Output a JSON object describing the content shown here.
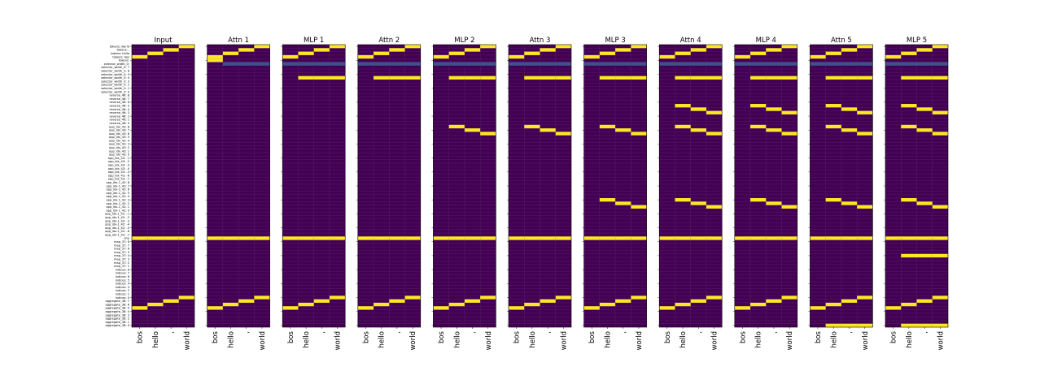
{
  "chart_data": {
    "type": "heatmap",
    "colormap": {
      "low": "#440154",
      "mid": "#3b528b",
      "high": "#fde725"
    },
    "panel_titles": [
      "Input",
      "Attn 1",
      "MLP 1",
      "Attn 2",
      "MLP 2",
      "Attn 3",
      "MLP 3",
      "Attn 4",
      "MLP 4",
      "Attn 5",
      "MLP 5"
    ],
    "x_tick_labels": [
      "bos",
      "hello",
      ",",
      "world"
    ],
    "y_labels": [
      "tokens: world",
      "tokens: ,",
      "tokens: hello",
      "tokens: bos",
      "tokens:",
      "selector_width_0:",
      "selector_width_0: 7",
      "selector_width_0: 6",
      "selector_width_0: 5",
      "selector_width_0: 4",
      "selector_width_0: 3",
      "selector_width_0: 2",
      "selector_width_0: 1",
      "selector_width_0: 0",
      "reverse_46: 8",
      "reverse_46: 7",
      "reverse_46: 6",
      "reverse_46: 5",
      "reverse_46: 4",
      "reverse_46: 3",
      "reverse_46: 2",
      "reverse_46: 1",
      "reverse_46: 0",
      "opp_idx_43: 8",
      "opp_idx_43: 7",
      "opp_idx_43: 6",
      "opp_idx_43: 5",
      "opp_idx_43: 4",
      "opp_idx_43: 3",
      "opp_idx_43: 2",
      "opp_idx_43: 1",
      "opp_idx_43: 0",
      "opp_idx_43: -1",
      "opp_idx_43: -2",
      "opp_idx_43: -3",
      "opp_idx_43: -4",
      "opp_idx_43: -5",
      "opp_idx_43: -6",
      "opp_idx_43: -7",
      "opp_idx-1_42: 8",
      "opp_idx-1_42: 7",
      "opp_idx-1_42: 6",
      "opp_idx-1_42: 5",
      "opp_idx-1_42: 4",
      "opp_idx-1_42: 3",
      "opp_idx-1_42: 2",
      "opp_idx-1_42: 1",
      "opp_idx-1_42: 0",
      "opp_idx-1_42: -1",
      "opp_idx-1_42: -2",
      "opp_idx-1_42: -3",
      "opp_idx-1_42: -4",
      "opp_idx-1_42: -5",
      "opp_idx-1_42: -6",
      "opp_idx-1_42: -7",
      "one",
      "map_37: 8",
      "map_37: 7",
      "map_37: 6",
      "map_37: 5",
      "map_37: 4",
      "map_37: 3",
      "map_37: 2",
      "map_37: 1",
      "indices: 8",
      "indices: 7",
      "indices: 6",
      "indices: 5",
      "indices: 4",
      "indices: 3",
      "indices: 2",
      "indices: 1",
      "indices: 0",
      "aggregate_38: 7",
      "aggregate_38: 6",
      "aggregate_38: 5",
      "aggregate_38: 4",
      "aggregate_38: 3",
      "aggregate_38: 2",
      "aggregate_38: 1",
      "aggregate_38: 0"
    ],
    "cell_values": {
      "note": "value 1 = yellow, 0.4 = blue-grey, 0 = purple; [row, col, value]",
      "base": [
        [
          0,
          3,
          1
        ],
        [
          1,
          2,
          1
        ],
        [
          2,
          1,
          1
        ],
        [
          3,
          0,
          1
        ],
        [
          55,
          0,
          1
        ],
        [
          55,
          1,
          1
        ],
        [
          55,
          2,
          1
        ],
        [
          55,
          3,
          1
        ],
        [
          72,
          3,
          1
        ],
        [
          73,
          2,
          1
        ],
        [
          74,
          1,
          1
        ],
        [
          75,
          0,
          1
        ]
      ],
      "attn1": [
        [
          4,
          0,
          1
        ],
        [
          5,
          1,
          0.4
        ],
        [
          5,
          2,
          0.4
        ],
        [
          5,
          3,
          0.4
        ]
      ],
      "mlp1": [
        [
          5,
          0,
          0.4
        ],
        [
          5,
          1,
          0.4
        ],
        [
          5,
          2,
          0.4
        ],
        [
          5,
          3,
          0.4
        ],
        [
          9,
          1,
          1
        ],
        [
          9,
          2,
          1
        ],
        [
          9,
          3,
          1
        ]
      ],
      "mlp2": [
        [
          23,
          1,
          1
        ],
        [
          24,
          2,
          1
        ],
        [
          25,
          3,
          1
        ]
      ],
      "mlp3": [
        [
          44,
          1,
          1
        ],
        [
          45,
          2,
          1
        ],
        [
          46,
          3,
          1
        ]
      ],
      "attn4": [
        [
          17,
          1,
          1
        ],
        [
          18,
          2,
          1
        ],
        [
          19,
          3,
          1
        ]
      ],
      "attn5": [
        [
          80,
          1,
          1
        ],
        [
          80,
          2,
          1
        ],
        [
          80,
          3,
          1
        ]
      ],
      "mlp5": [
        [
          60,
          1,
          1
        ],
        [
          60,
          2,
          1
        ],
        [
          60,
          3,
          1
        ]
      ]
    },
    "panel_layers": [
      [],
      [
        "attn1"
      ],
      [
        "mlp1"
      ],
      [
        "mlp1"
      ],
      [
        "mlp1",
        "mlp2"
      ],
      [
        "mlp1",
        "mlp2"
      ],
      [
        "mlp1",
        "mlp2",
        "mlp3"
      ],
      [
        "mlp1",
        "mlp2",
        "mlp3",
        "attn4"
      ],
      [
        "mlp1",
        "mlp2",
        "mlp3",
        "attn4"
      ],
      [
        "mlp1",
        "mlp2",
        "mlp3",
        "attn4",
        "attn5"
      ],
      [
        "mlp1",
        "mlp2",
        "mlp3",
        "attn4",
        "attn5",
        "mlp5"
      ]
    ],
    "grid": true
  }
}
